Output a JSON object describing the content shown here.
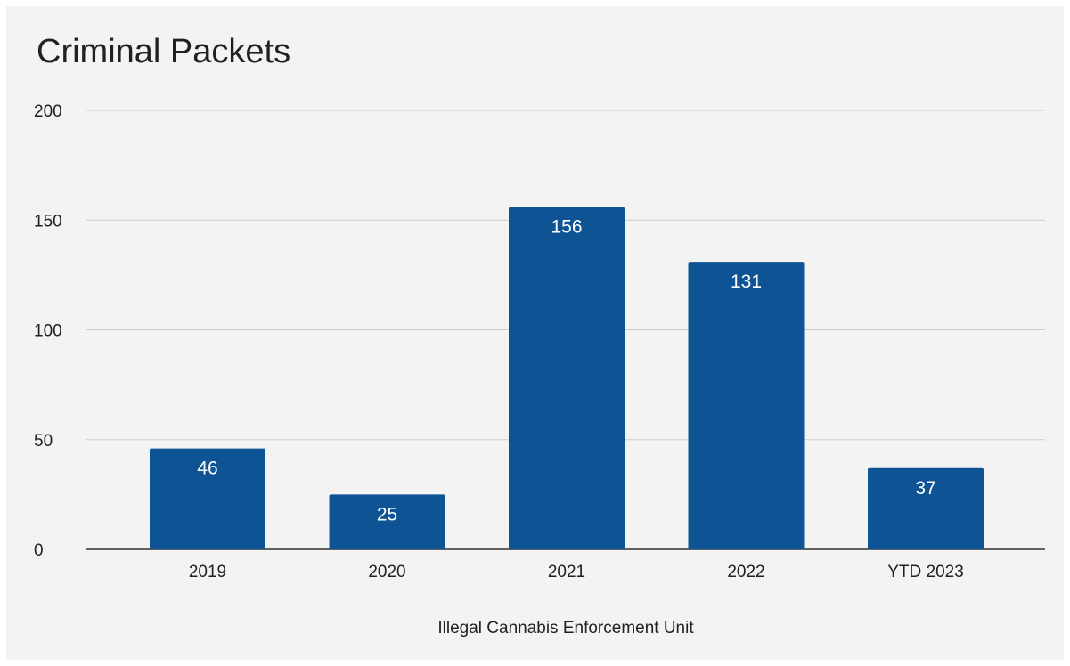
{
  "chart_data": {
    "type": "bar",
    "title": "Criminal Packets",
    "xlabel": "Illegal Cannabis Enforcement Unit",
    "ylabel": "",
    "categories": [
      "2019",
      "2020",
      "2021",
      "2022",
      "YTD 2023"
    ],
    "values": [
      46,
      25,
      156,
      131,
      37
    ],
    "data_labels": [
      "46",
      "25",
      "156",
      "131",
      "37"
    ],
    "ylim": [
      0,
      200
    ],
    "yticks": [
      0,
      50,
      100,
      150,
      200
    ],
    "ytick_labels": [
      "0",
      "50",
      "100",
      "150",
      "200"
    ],
    "grid": true,
    "legend": "none",
    "colors": {
      "bar": "#0e5494",
      "background": "#f3f3f3",
      "gridline": "#cccccc",
      "baseline": "#333333",
      "text": "#202124",
      "data_label": "#ffffff"
    }
  }
}
